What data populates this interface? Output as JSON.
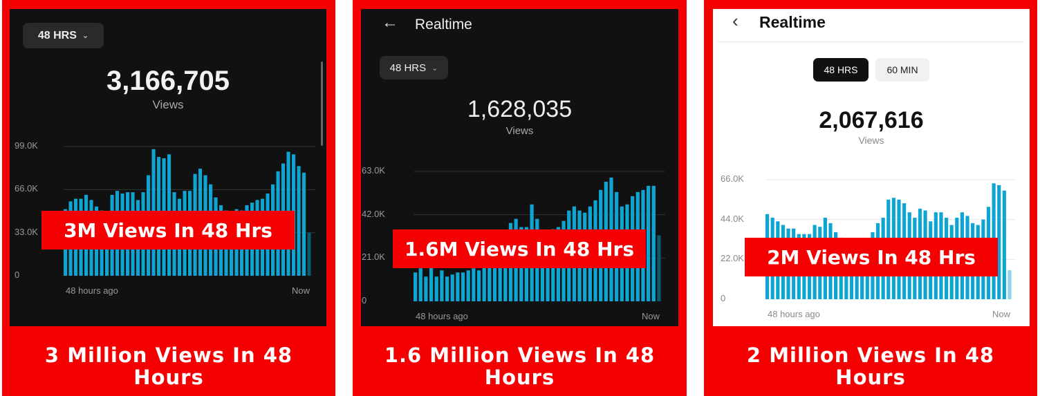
{
  "panels": [
    {
      "theme": "dark",
      "range_label": "48 HRS",
      "total_views": "3,166,705",
      "views_label": "Views",
      "banner": "3M Views In 48 Hrs",
      "caption": "3 Million Views In 48 Hours"
    },
    {
      "theme": "dark",
      "title": "Realtime",
      "range_label": "48 HRS",
      "total_views": "1,628,035",
      "views_label": "Views",
      "banner": "1.6M Views In 48 Hrs",
      "caption": "1.6 Million Views In 48 Hours"
    },
    {
      "theme": "light",
      "title": "Realtime",
      "tabs": [
        "48 HRS",
        "60 MIN"
      ],
      "active_tab": "48 HRS",
      "total_views": "2,067,616",
      "views_label": "Views",
      "banner": "2M Views In 48 Hrs",
      "caption": "2 Million Views In 48 Hours"
    }
  ],
  "colors": {
    "frame": "#f40000",
    "bar": "#0ea5d3",
    "bar_partial_dark": "#0a5a70",
    "bar_partial_light": "#8fd3ea"
  },
  "chart_data": [
    {
      "type": "bar",
      "ylim": [
        0,
        99
      ],
      "yticks": [
        "0",
        "33.0K",
        "66.0K",
        "99.0K"
      ],
      "ytick_values": [
        0,
        33,
        66,
        99
      ],
      "xlabels": [
        "48 hours ago",
        "Now"
      ],
      "unit": "K views per hour",
      "values": [
        51,
        57,
        59,
        59,
        62,
        58,
        53,
        50,
        48,
        62,
        65,
        63,
        64,
        64,
        58,
        64,
        77,
        97,
        91,
        90,
        93,
        64,
        59,
        65,
        65,
        78,
        82,
        77,
        70,
        60,
        54,
        50,
        48,
        51,
        50,
        54,
        56,
        58,
        59,
        63,
        70,
        80,
        86,
        95,
        93,
        84,
        79,
        33
      ]
    },
    {
      "type": "bar",
      "ylim": [
        0,
        63
      ],
      "yticks": [
        "0",
        "21.0K",
        "42.0K",
        "63.0K"
      ],
      "ytick_values": [
        0,
        21,
        42,
        63
      ],
      "xlabels": [
        "48 hours ago",
        "Now"
      ],
      "unit": "K views per hour",
      "values": [
        14,
        16,
        12,
        17,
        12,
        15,
        12,
        13,
        14,
        14,
        15,
        16,
        15,
        17,
        19,
        21,
        23,
        24,
        38,
        40,
        36,
        36,
        47,
        40,
        30,
        32,
        35,
        36,
        39,
        44,
        46,
        44,
        43,
        46,
        49,
        54,
        58,
        60,
        53,
        46,
        47,
        51,
        53,
        54,
        56,
        56,
        32
      ]
    },
    {
      "type": "bar",
      "ylim": [
        0,
        66
      ],
      "yticks": [
        "0",
        "22.0K",
        "44.0K",
        "66.0K"
      ],
      "ytick_values": [
        0,
        22,
        44,
        66
      ],
      "xlabels": [
        "48 hours ago",
        "Now"
      ],
      "unit": "K views per hour",
      "values": [
        47,
        45,
        43,
        41,
        39,
        39,
        36,
        36,
        36,
        41,
        40,
        45,
        42,
        37,
        34,
        32,
        30,
        30,
        30,
        31,
        37,
        42,
        45,
        55,
        56,
        55,
        53,
        48,
        45,
        50,
        49,
        43,
        48,
        48,
        45,
        41,
        45,
        48,
        46,
        42,
        41,
        44,
        51,
        64,
        63,
        60,
        16
      ]
    }
  ]
}
